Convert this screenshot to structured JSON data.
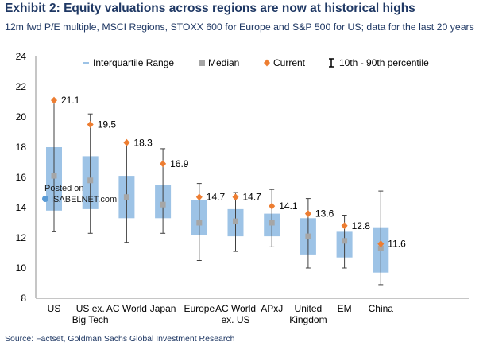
{
  "title": "Exhibit 2: Equity valuations across regions are now at historical highs",
  "subtitle": "12m fwd P/E multiple, MSCI Regions, STOXX 600 for Europe and S&P 500 for US; data for the last 20 years",
  "source": "Source: Factset, Goldman Sachs Global Investment Research",
  "watermark": {
    "line1": "Posted on",
    "line2": "ISABELNET.com"
  },
  "colors": {
    "box": "#9dc3e6",
    "median": "#a6a6a6",
    "current": "#ed7d31",
    "whisker": "#404040"
  },
  "chart_data": {
    "type": "box",
    "title": "Exhibit 2: Equity valuations across regions are now at historical highs",
    "ylim": [
      8,
      24
    ],
    "yticks": [
      8,
      10,
      12,
      14,
      16,
      18,
      20,
      22,
      24
    ],
    "legend": [
      "Interquartile Range",
      "Median",
      "Current",
      "10th - 90th percentile"
    ],
    "categories": [
      [
        "US"
      ],
      [
        "US ex.",
        "Big Tech"
      ],
      [
        "AC World"
      ],
      [
        "Japan"
      ],
      [
        "Europe"
      ],
      [
        "AC World",
        "ex. US"
      ],
      [
        "APxJ"
      ],
      [
        "United",
        "Kingdom"
      ],
      [
        "EM"
      ],
      [
        "China"
      ]
    ],
    "series": [
      {
        "name": "10th percentile",
        "values": [
          12.4,
          12.3,
          11.7,
          12.3,
          10.5,
          11.1,
          11.4,
          10.0,
          10.0,
          8.9
        ]
      },
      {
        "name": "25th percentile",
        "values": [
          13.8,
          13.9,
          13.3,
          13.3,
          12.2,
          12.1,
          12.1,
          10.9,
          10.7,
          9.7
        ]
      },
      {
        "name": "Median",
        "values": [
          16.1,
          15.8,
          14.7,
          14.2,
          13.0,
          13.1,
          13.0,
          12.1,
          11.8,
          11.3
        ]
      },
      {
        "name": "75th percentile",
        "values": [
          18.0,
          17.4,
          16.1,
          15.5,
          14.5,
          13.9,
          13.6,
          13.3,
          12.4,
          12.7
        ]
      },
      {
        "name": "90th percentile",
        "values": [
          21.2,
          20.2,
          18.3,
          17.9,
          15.6,
          15.0,
          15.2,
          14.6,
          13.5,
          15.1
        ]
      },
      {
        "name": "Current",
        "values": [
          21.1,
          19.5,
          18.3,
          16.9,
          14.7,
          14.7,
          14.1,
          13.6,
          12.8,
          11.6
        ]
      }
    ],
    "current_labels": [
      "21.1",
      "19.5",
      "18.3",
      "16.9",
      "14.7",
      "14.7",
      "14.1",
      "13.6",
      "12.8",
      "11.6"
    ]
  }
}
